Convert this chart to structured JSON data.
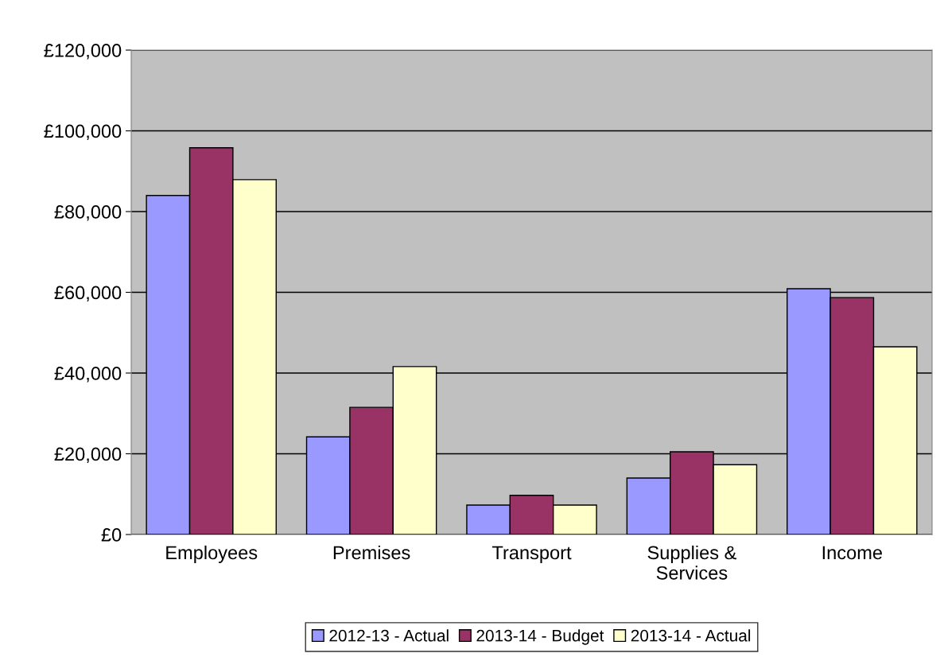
{
  "chart_data": {
    "type": "bar",
    "categories": [
      "Employees",
      "Premises",
      "Transport",
      "Supplies &\nServices",
      "Income"
    ],
    "series": [
      {
        "name": "2012-13 - Actual",
        "color": "#9999ff",
        "values": [
          84000,
          24200,
          7300,
          14000,
          60900
        ]
      },
      {
        "name": "2013-14 - Budget",
        "color": "#993366",
        "values": [
          95800,
          31500,
          9700,
          20500,
          58700
        ]
      },
      {
        "name": "2013-14 - Actual",
        "color": "#ffffcc",
        "values": [
          87900,
          41600,
          7300,
          17300,
          46500
        ]
      }
    ],
    "ylim": [
      0,
      120000
    ],
    "yticks": [
      {
        "value": 0,
        "label": "£0"
      },
      {
        "value": 20000,
        "label": "£20,000"
      },
      {
        "value": 40000,
        "label": "£40,000"
      },
      {
        "value": 60000,
        "label": "£60,000"
      },
      {
        "value": 80000,
        "label": "£80,000"
      },
      {
        "value": 100000,
        "label": "£100,000"
      },
      {
        "value": 120000,
        "label": "£120,000"
      }
    ],
    "grid": "y",
    "legend": "bottom"
  }
}
